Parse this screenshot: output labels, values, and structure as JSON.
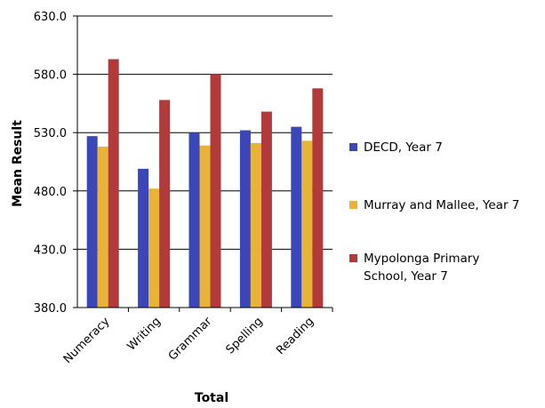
{
  "chart_data": {
    "type": "bar",
    "categories": [
      "Numeracy",
      "Writing",
      "Grammar",
      "Spelling",
      "Reading"
    ],
    "series": [
      {
        "name": "DECD, Year 7",
        "color": "#3b46b8",
        "values": [
          527,
          499,
          530,
          532,
          535
        ]
      },
      {
        "name": "Murray and Mallee, Year 7",
        "color": "#e8b437",
        "values": [
          518,
          482,
          519,
          521,
          523
        ]
      },
      {
        "name": "Mypolonga Primary School, Year 7",
        "color": "#b23a3a",
        "values": [
          593,
          558,
          580,
          548,
          568
        ]
      }
    ],
    "ylabel": "Mean Result",
    "xlabel": "Total",
    "ylim": [
      380.0,
      630.0
    ],
    "yticks": [
      "380.0",
      "430.0",
      "480.0",
      "530.0",
      "580.0",
      "630.0"
    ],
    "grid": true,
    "legend_position": "right",
    "legend_labels": [
      [
        "DECD, Year 7"
      ],
      [
        "Murray and Mallee, Year 7"
      ],
      [
        "Mypolonga Primary",
        "School, Year 7"
      ]
    ]
  }
}
